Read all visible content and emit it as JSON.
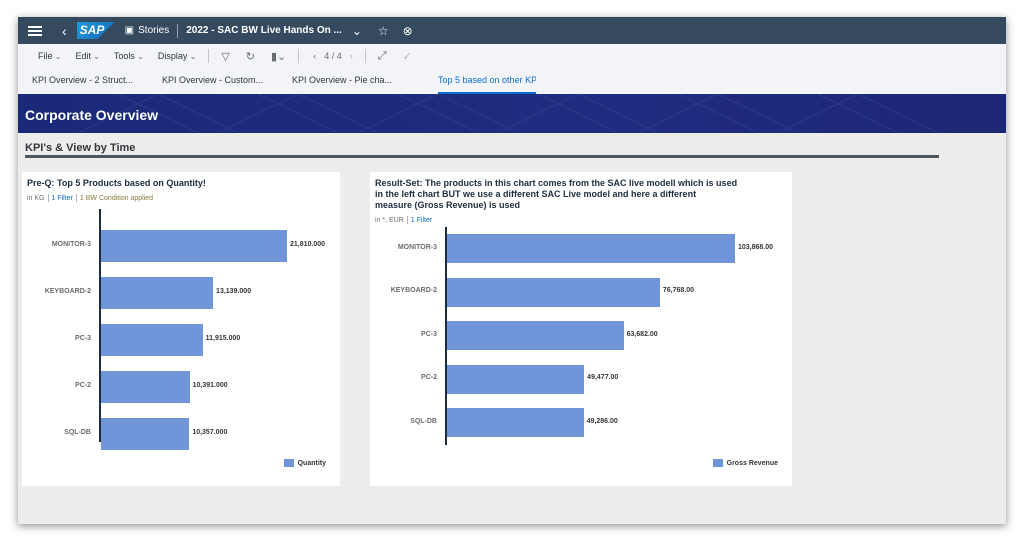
{
  "shell": {
    "app_name": "Stories",
    "story_title": "2022 - SAC BW Live Hands On ...",
    "logo_text": "SAP"
  },
  "toolbar": {
    "menus": [
      "File",
      "Edit",
      "Tools",
      "Display"
    ],
    "page_indicator": "4 / 4"
  },
  "tabs": [
    {
      "label": "KPI Overview - 2 Struct...",
      "active": false
    },
    {
      "label": "KPI Overview - Custom...",
      "active": false
    },
    {
      "label": "KPI Overview - Pie cha...",
      "active": false
    },
    {
      "label": "Top 5 based on other KPI",
      "active": true
    }
  ],
  "header": {
    "title": "Corporate Overview",
    "section_title": "KPI's & View by Time",
    "colors": {
      "banner": "#1a2a78",
      "bar": "#7095d8",
      "accent": "#0a6ed1"
    }
  },
  "left_chart": {
    "title": "Pre-Q: Top 5 Products based on Quantity!",
    "unit": "in KG",
    "filter": "1 Filter",
    "condition": "1 BW Condition applied",
    "legend": "Quantity",
    "value_labels": [
      "21,810.000",
      "13,139.000",
      "11,915.000",
      "10,391.000",
      "10,357.000"
    ]
  },
  "right_chart": {
    "title_lines": [
      "Result-Set: The products in this chart comes from the SAC live modell which is used",
      "in the left chart BUT we use a different SAC Live model and here a different",
      "measure (Gross Revenue) is used"
    ],
    "unit": "in *, EUR",
    "filter": "1 Filter",
    "legend": "Gross Revenue",
    "value_labels": [
      "103,868.00",
      "76,768.00",
      "63,682.00",
      "49,477.00",
      "49,286.00"
    ]
  },
  "chart_data": [
    {
      "type": "bar",
      "orientation": "horizontal",
      "title": "Pre-Q: Top 5 Products based on Quantity!",
      "categories": [
        "MONITOR-3",
        "KEYBOARD-2",
        "PC-3",
        "PC-2",
        "SQL-DB"
      ],
      "series": [
        {
          "name": "Quantity",
          "values": [
            21810,
            13139,
            11915,
            10391,
            10357
          ]
        }
      ],
      "xlim": [
        0,
        21810
      ],
      "legend_position": "bottom-right",
      "grid": false
    },
    {
      "type": "bar",
      "orientation": "horizontal",
      "title": "Result-Set: The products in this chart comes from the SAC live modell which is used in the left chart BUT we use a different SAC Live model and here a different measure (Gross Revenue) is used",
      "categories": [
        "MONITOR-3",
        "KEYBOARD-2",
        "PC-3",
        "PC-2",
        "SQL-DB"
      ],
      "series": [
        {
          "name": "Gross Revenue",
          "values": [
            103868,
            76768,
            63682,
            49477,
            49286
          ]
        }
      ],
      "xlim": [
        0,
        103868
      ],
      "legend_position": "bottom-right",
      "grid": false
    }
  ]
}
